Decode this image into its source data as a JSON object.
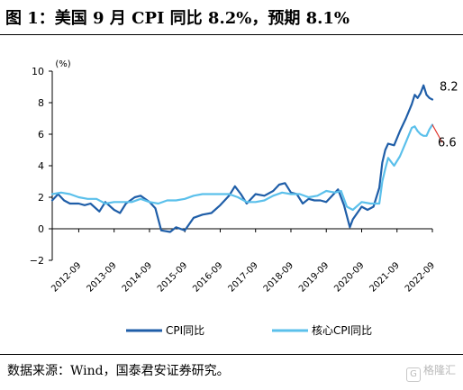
{
  "header": {
    "title": "图 1：美国 9 月 CPI 同比 8.2%，预期 8.1%"
  },
  "footer": {
    "source": "数据来源：Wind，国泰君安证券研究。",
    "watermark": "格隆汇"
  },
  "colors": {
    "cpi": "#1f5ea8",
    "core_cpi": "#5bc0eb",
    "forecast_marker": "#e0322a"
  },
  "chart_data": {
    "type": "line",
    "unit_label": "(%)",
    "xlabel": "",
    "ylabel": "",
    "ylim": [
      -2,
      10
    ],
    "yticks": [
      -2,
      0,
      2,
      4,
      6,
      8,
      10
    ],
    "xlim": [
      "2011-12",
      "2022-09"
    ],
    "x_tick_labels": [
      "2012-09",
      "2013-09",
      "2014-09",
      "2015-09",
      "2016-09",
      "2017-09",
      "2018-09",
      "2019-09",
      "2020-09",
      "2021-09",
      "2022-09"
    ],
    "grid": false,
    "legend_position": "bottom",
    "annotations": [
      "8.2",
      "6.6"
    ],
    "series": [
      {
        "name": "CPI同比",
        "points": [
          [
            "2011-12",
            1.8
          ],
          [
            "2012-02",
            2.2
          ],
          [
            "2012-04",
            1.8
          ],
          [
            "2012-06",
            1.6
          ],
          [
            "2012-09",
            1.6
          ],
          [
            "2012-11",
            1.5
          ],
          [
            "2013-01",
            1.6
          ],
          [
            "2013-04",
            1.1
          ],
          [
            "2013-06",
            1.7
          ],
          [
            "2013-09",
            1.2
          ],
          [
            "2013-11",
            1.0
          ],
          [
            "2014-01",
            1.6
          ],
          [
            "2014-04",
            2.0
          ],
          [
            "2014-06",
            2.1
          ],
          [
            "2014-09",
            1.7
          ],
          [
            "2014-11",
            1.3
          ],
          [
            "2015-01",
            -0.1
          ],
          [
            "2015-04",
            -0.2
          ],
          [
            "2015-06",
            0.1
          ],
          [
            "2015-09",
            -0.1
          ],
          [
            "2015-12",
            0.7
          ],
          [
            "2016-03",
            0.9
          ],
          [
            "2016-06",
            1.0
          ],
          [
            "2016-09",
            1.5
          ],
          [
            "2016-12",
            2.1
          ],
          [
            "2017-02",
            2.7
          ],
          [
            "2017-04",
            2.2
          ],
          [
            "2017-06",
            1.6
          ],
          [
            "2017-09",
            2.2
          ],
          [
            "2017-12",
            2.1
          ],
          [
            "2018-03",
            2.4
          ],
          [
            "2018-05",
            2.8
          ],
          [
            "2018-07",
            2.9
          ],
          [
            "2018-09",
            2.3
          ],
          [
            "2018-11",
            2.2
          ],
          [
            "2019-01",
            1.6
          ],
          [
            "2019-03",
            1.9
          ],
          [
            "2019-05",
            1.8
          ],
          [
            "2019-07",
            1.8
          ],
          [
            "2019-09",
            1.7
          ],
          [
            "2019-11",
            2.1
          ],
          [
            "2020-01",
            2.5
          ],
          [
            "2020-03",
            1.5
          ],
          [
            "2020-05",
            0.1
          ],
          [
            "2020-06",
            0.6
          ],
          [
            "2020-09",
            1.4
          ],
          [
            "2020-11",
            1.2
          ],
          [
            "2021-01",
            1.4
          ],
          [
            "2021-03",
            2.6
          ],
          [
            "2021-04",
            4.2
          ],
          [
            "2021-05",
            5.0
          ],
          [
            "2021-06",
            5.4
          ],
          [
            "2021-08",
            5.3
          ],
          [
            "2021-10",
            6.2
          ],
          [
            "2021-12",
            7.0
          ],
          [
            "2022-02",
            7.9
          ],
          [
            "2022-03",
            8.5
          ],
          [
            "2022-04",
            8.3
          ],
          [
            "2022-05",
            8.6
          ],
          [
            "2022-06",
            9.1
          ],
          [
            "2022-07",
            8.5
          ],
          [
            "2022-08",
            8.3
          ],
          [
            "2022-09",
            8.2
          ]
        ],
        "end_label": "8.2"
      },
      {
        "name": "核心CPI同比",
        "points": [
          [
            "2011-12",
            2.2
          ],
          [
            "2012-03",
            2.3
          ],
          [
            "2012-06",
            2.2
          ],
          [
            "2012-09",
            2.0
          ],
          [
            "2012-12",
            1.9
          ],
          [
            "2013-03",
            1.9
          ],
          [
            "2013-06",
            1.6
          ],
          [
            "2013-09",
            1.7
          ],
          [
            "2013-12",
            1.7
          ],
          [
            "2014-03",
            1.7
          ],
          [
            "2014-06",
            1.9
          ],
          [
            "2014-09",
            1.7
          ],
          [
            "2014-12",
            1.6
          ],
          [
            "2015-03",
            1.8
          ],
          [
            "2015-06",
            1.8
          ],
          [
            "2015-09",
            1.9
          ],
          [
            "2015-12",
            2.1
          ],
          [
            "2016-03",
            2.2
          ],
          [
            "2016-06",
            2.2
          ],
          [
            "2016-09",
            2.2
          ],
          [
            "2016-12",
            2.2
          ],
          [
            "2017-03",
            2.0
          ],
          [
            "2017-06",
            1.7
          ],
          [
            "2017-09",
            1.7
          ],
          [
            "2017-12",
            1.8
          ],
          [
            "2018-03",
            2.1
          ],
          [
            "2018-06",
            2.3
          ],
          [
            "2018-09",
            2.2
          ],
          [
            "2018-12",
            2.2
          ],
          [
            "2019-03",
            2.0
          ],
          [
            "2019-06",
            2.1
          ],
          [
            "2019-09",
            2.4
          ],
          [
            "2019-12",
            2.3
          ],
          [
            "2020-02",
            2.4
          ],
          [
            "2020-04",
            1.4
          ],
          [
            "2020-06",
            1.2
          ],
          [
            "2020-09",
            1.7
          ],
          [
            "2020-12",
            1.6
          ],
          [
            "2021-03",
            1.6
          ],
          [
            "2021-04",
            3.0
          ],
          [
            "2021-05",
            3.8
          ],
          [
            "2021-06",
            4.5
          ],
          [
            "2021-08",
            4.0
          ],
          [
            "2021-10",
            4.6
          ],
          [
            "2021-12",
            5.5
          ],
          [
            "2022-02",
            6.4
          ],
          [
            "2022-03",
            6.5
          ],
          [
            "2022-04",
            6.2
          ],
          [
            "2022-05",
            6.0
          ],
          [
            "2022-06",
            5.9
          ],
          [
            "2022-07",
            5.9
          ],
          [
            "2022-08",
            6.3
          ],
          [
            "2022-09",
            6.6
          ]
        ],
        "end_label": "6.6"
      }
    ]
  }
}
